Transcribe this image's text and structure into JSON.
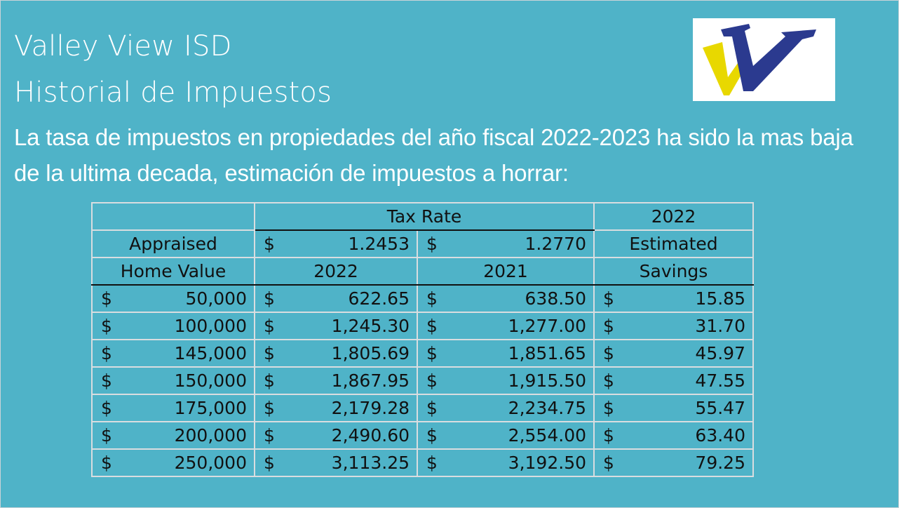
{
  "slide": {
    "title_line1": "Valley View ISD",
    "title_line2": "Historial de Impuestos",
    "subtitle": "La tasa de impuestos en propiedades del año fiscal 2022-2023 ha sido la mas baja de la ultima decada, estimación de impuestos a horrar:",
    "logo_name": "valley-view-logo",
    "colors": {
      "background": "#4fb3c8",
      "logo_blue": "#2b3a8f",
      "logo_yellow": "#e8d800"
    }
  },
  "table": {
    "header": {
      "tax_rate": "Tax Rate",
      "year_2022_top": "2022",
      "appraised": "Appraised",
      "rate_2022_cur": "$",
      "rate_2022": "1.2453",
      "rate_2021_cur": "$",
      "rate_2021": "1.2770",
      "estimated": "Estimated",
      "home_value": "Home Value",
      "col_2022": "2022",
      "col_2021": "2021",
      "savings": "Savings"
    },
    "rows": [
      {
        "cur": "$",
        "value": "50,000",
        "c2022": "622.65",
        "c2021": "638.50",
        "savings": "15.85"
      },
      {
        "cur": "$",
        "value": "100,000",
        "c2022": "1,245.30",
        "c2021": "1,277.00",
        "savings": "31.70"
      },
      {
        "cur": "$",
        "value": "145,000",
        "c2022": "1,805.69",
        "c2021": "1,851.65",
        "savings": "45.97"
      },
      {
        "cur": "$",
        "value": "150,000",
        "c2022": "1,867.95",
        "c2021": "1,915.50",
        "savings": "47.55"
      },
      {
        "cur": "$",
        "value": "175,000",
        "c2022": "2,179.28",
        "c2021": "2,234.75",
        "savings": "55.47"
      },
      {
        "cur": "$",
        "value": "200,000",
        "c2022": "2,490.60",
        "c2021": "2,554.00",
        "savings": "63.40"
      },
      {
        "cur": "$",
        "value": "250,000",
        "c2022": "3,113.25",
        "c2021": "3,192.50",
        "savings": "79.25"
      }
    ]
  }
}
